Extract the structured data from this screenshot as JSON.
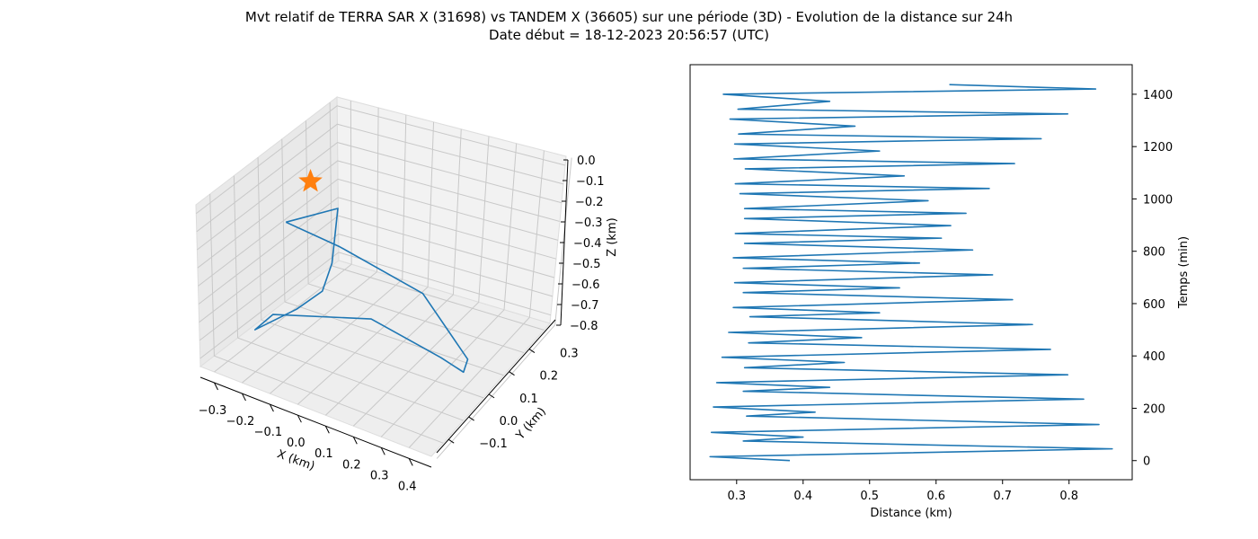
{
  "chart_data": [
    {
      "type": "line",
      "projection": "3d",
      "title": [
        "Mvt relatif de TERRA SAR X (31698) vs TANDEM X (36605) sur une période (3D) - Evolution de la distance sur 24h",
        "Date début = 18-12-2023 20:56:57 (UTC)"
      ],
      "xlabel": "X (km)",
      "ylabel": "Y (km)",
      "zlabel": "Z (km)",
      "x_ticks": [
        "−0.3",
        "−0.2",
        "−0.1",
        "0.0",
        "0.1",
        "0.2",
        "0.3",
        "0.4"
      ],
      "y_ticks": [
        "−0.1",
        "0.0",
        "0.1",
        "0.2",
        "0.3"
      ],
      "z_ticks": [
        "0.0",
        "−0.1",
        "−0.2",
        "−0.3",
        "−0.4",
        "−0.5",
        "−0.6",
        "−0.7",
        "−0.8"
      ],
      "grid": true,
      "colors": {
        "line": "#1f77b4",
        "marker": "#ff7f0e",
        "pane": "#f2f2f2"
      },
      "marker": {
        "symbol": "star",
        "x": -0.25,
        "y": 0.15,
        "z": -0.12
      },
      "series": [
        {
          "points": [
            [
              -0.25,
              0.05,
              -0.23
            ],
            [
              -0.2,
              0.2,
              -0.28
            ],
            [
              -0.18,
              0.15,
              -0.5
            ],
            [
              -0.19,
              0.12,
              -0.62
            ],
            [
              -0.22,
              0.05,
              -0.66
            ],
            [
              -0.28,
              -0.05,
              -0.7
            ],
            [
              -0.26,
              0.0,
              -0.66
            ],
            [
              0.05,
              0.05,
              -0.56
            ],
            [
              0.3,
              0.05,
              -0.62
            ],
            [
              0.38,
              0.05,
              -0.65
            ],
            [
              0.35,
              0.1,
              -0.65
            ],
            [
              0.1,
              0.2,
              -0.55
            ],
            [
              -0.15,
              0.15,
              -0.4
            ],
            [
              -0.25,
              0.05,
              -0.23
            ]
          ]
        }
      ]
    },
    {
      "type": "line",
      "xlabel": "Distance (km)",
      "ylabel": "Temps (min)",
      "xlim": [
        0.23,
        0.895
      ],
      "ylim": [
        -73,
        1513
      ],
      "x_ticks": [
        0.3,
        0.4,
        0.5,
        0.6,
        0.7,
        0.8
      ],
      "y_ticks": [
        0,
        200,
        400,
        600,
        800,
        1000,
        1200,
        1400
      ],
      "colors": {
        "line": "#1f77b4"
      },
      "series": [
        {
          "x": [
            0.38,
            0.26,
            0.865,
            0.31,
            0.4,
            0.262,
            0.845,
            0.315,
            0.418,
            0.265,
            0.822,
            0.31,
            0.44,
            0.27,
            0.798,
            0.312,
            0.462,
            0.278,
            0.772,
            0.318,
            0.488,
            0.288,
            0.745,
            0.32,
            0.515,
            0.295,
            0.715,
            0.31,
            0.545,
            0.297,
            0.685,
            0.31,
            0.575,
            0.295,
            0.655,
            0.312,
            0.608,
            0.298,
            0.622,
            0.312,
            0.645,
            0.312,
            0.588,
            0.305,
            0.68,
            0.298,
            0.552,
            0.313,
            0.718,
            0.296,
            0.515,
            0.297,
            0.758,
            0.303,
            0.478,
            0.29,
            0.798,
            0.302,
            0.44,
            0.28,
            0.84,
            0.62
          ],
          "y": [
            0,
            15,
            45,
            75,
            90,
            108,
            138,
            170,
            185,
            205,
            235,
            265,
            280,
            298,
            328,
            355,
            375,
            395,
            425,
            450,
            470,
            490,
            520,
            550,
            565,
            585,
            615,
            642,
            660,
            680,
            710,
            735,
            755,
            775,
            805,
            830,
            850,
            868,
            898,
            925,
            945,
            963,
            993,
            1020,
            1040,
            1058,
            1088,
            1115,
            1135,
            1153,
            1183,
            1210,
            1230,
            1248,
            1278,
            1305,
            1325,
            1343,
            1373,
            1400,
            1420,
            1437
          ]
        }
      ]
    }
  ]
}
